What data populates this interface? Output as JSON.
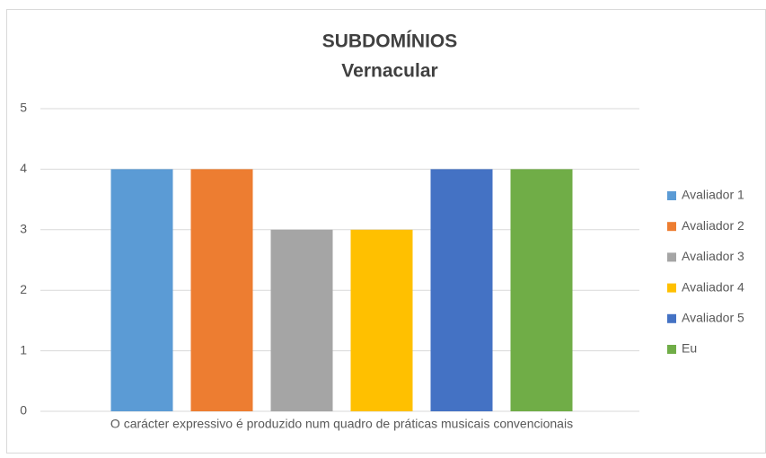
{
  "chart_data": {
    "type": "bar",
    "title": "SUBDOMÍNIOS",
    "subtitle": "Vernacular",
    "categories": [
      "O carácter expressivo é produzido num quadro de práticas musicais convencionais"
    ],
    "series": [
      {
        "name": "Avaliador 1",
        "color": "#5b9bd5",
        "values": [
          4
        ]
      },
      {
        "name": "Avaliador 2",
        "color": "#ed7d31",
        "values": [
          4
        ]
      },
      {
        "name": "Avaliador 3",
        "color": "#a5a5a5",
        "values": [
          3
        ]
      },
      {
        "name": "Avaliador 4",
        "color": "#ffc000",
        "values": [
          3
        ]
      },
      {
        "name": "Avaliador 5",
        "color": "#4472c4",
        "values": [
          4
        ]
      },
      {
        "name": "Eu",
        "color": "#70ad47",
        "values": [
          4
        ]
      }
    ],
    "ylim": [
      0,
      5
    ],
    "yticks": [
      0,
      1,
      2,
      3,
      4,
      5
    ],
    "grid": true,
    "legend": "right"
  }
}
